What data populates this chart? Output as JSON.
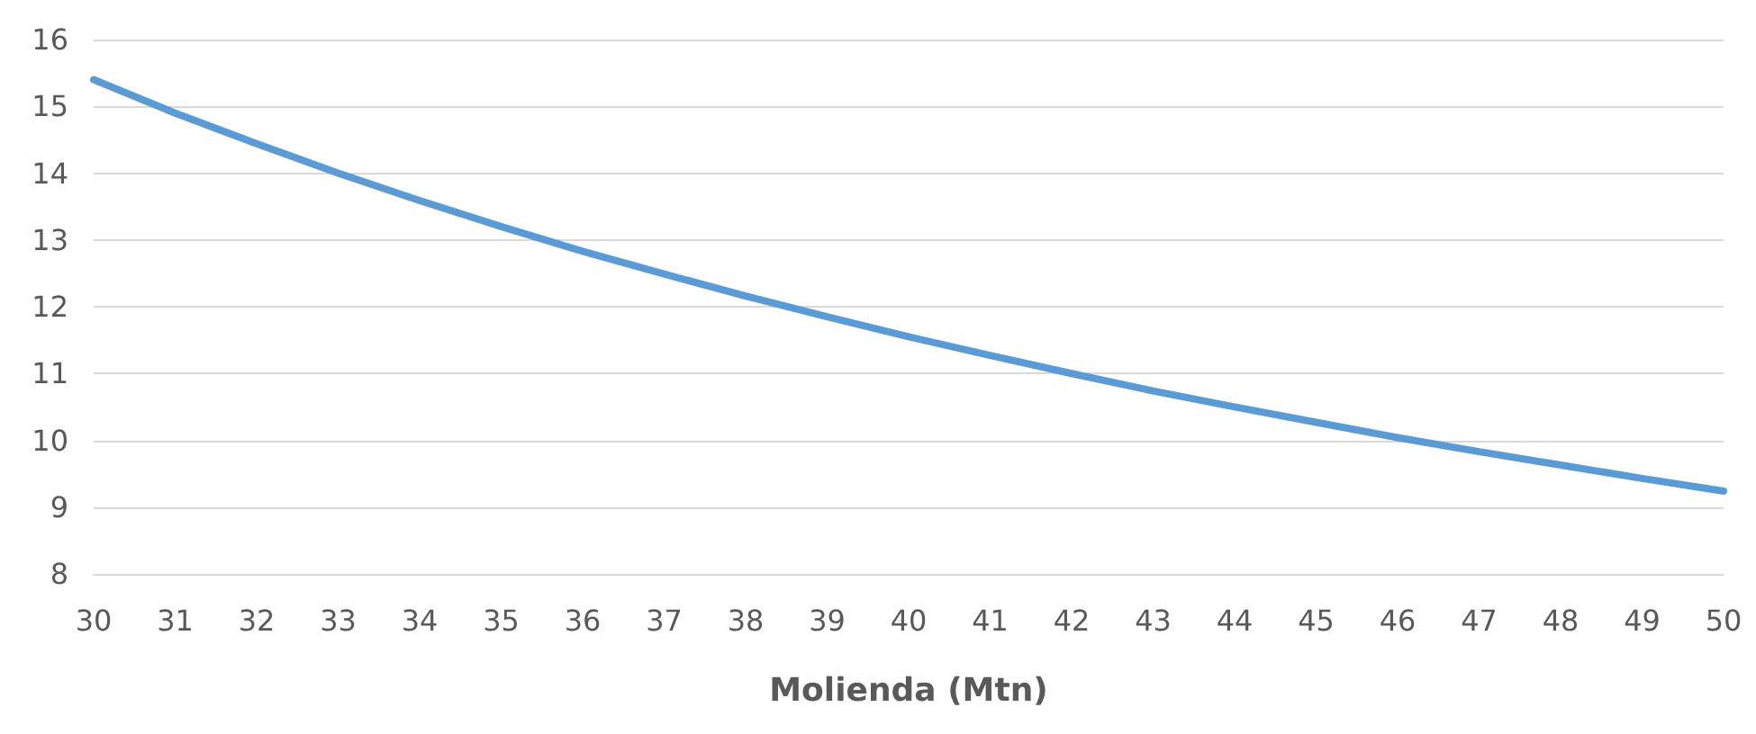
{
  "chart_data": {
    "type": "line",
    "xlabel": "Molienda (Mtn)",
    "categories": [
      "30",
      "31",
      "32",
      "33",
      "34",
      "35",
      "36",
      "37",
      "38",
      "39",
      "40",
      "41",
      "42",
      "43",
      "44",
      "45",
      "46",
      "47",
      "48",
      "49",
      "50"
    ],
    "series": [
      {
        "color": "#5b9bd5",
        "values": [
          15.4,
          14.9,
          14.44,
          14.0,
          13.59,
          13.2,
          12.83,
          12.49,
          12.16,
          11.85,
          11.55,
          11.27,
          11.0,
          10.74,
          10.5,
          10.27,
          10.04,
          9.83,
          9.63,
          9.43,
          9.24
        ]
      }
    ],
    "ylim": [
      8,
      16
    ],
    "yticks": [
      8,
      9,
      10,
      11,
      12,
      13,
      14,
      15,
      16
    ],
    "grid": "y",
    "marker": "none",
    "line_style": "solid"
  }
}
